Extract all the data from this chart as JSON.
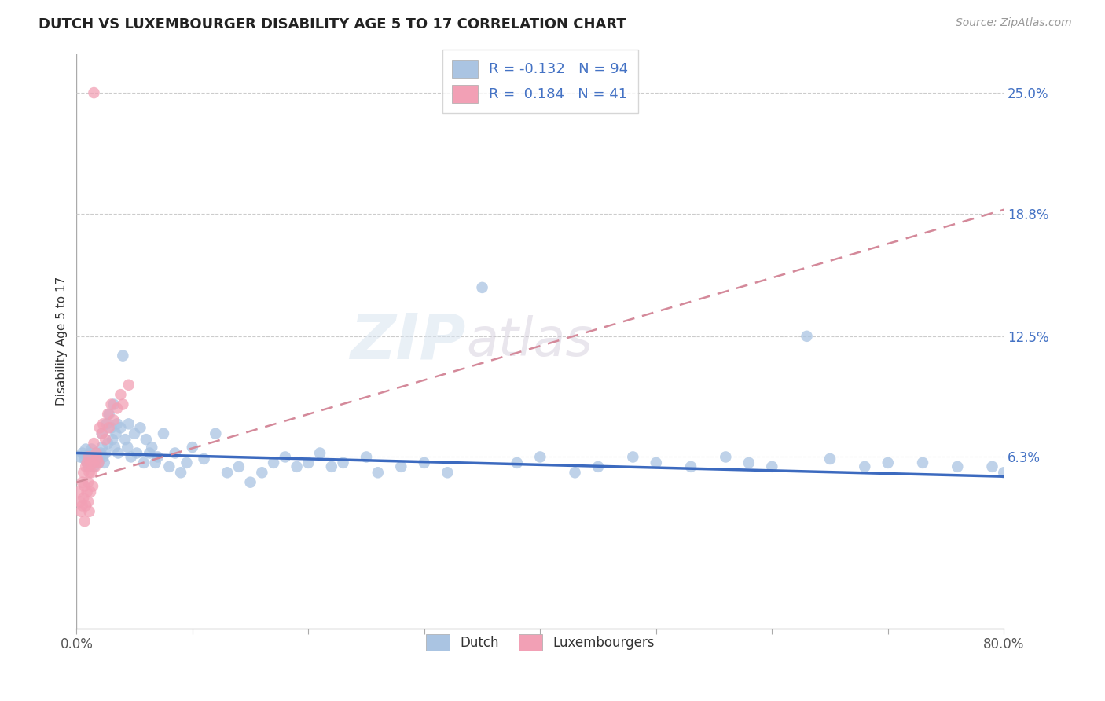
{
  "title": "DUTCH VS LUXEMBOURGER DISABILITY AGE 5 TO 17 CORRELATION CHART",
  "source": "Source: ZipAtlas.com",
  "ylabel": "Disability Age 5 to 17",
  "x_min": 0.0,
  "x_max": 0.8,
  "y_min": -0.025,
  "y_max": 0.27,
  "y_tick_labels_right": [
    "6.3%",
    "12.5%",
    "18.8%",
    "25.0%"
  ],
  "y_tick_positions_right": [
    0.063,
    0.125,
    0.188,
    0.25
  ],
  "dutch_R": -0.132,
  "dutch_N": 94,
  "lux_R": 0.184,
  "lux_N": 41,
  "dutch_color": "#aac4e2",
  "lux_color": "#f2a0b5",
  "trend_dutch_color": "#3c6abf",
  "trend_lux_color": "#e8607a",
  "watermark": "ZIPatlas",
  "dutch_scatter_x": [
    0.003,
    0.005,
    0.007,
    0.008,
    0.009,
    0.01,
    0.01,
    0.011,
    0.012,
    0.013,
    0.013,
    0.014,
    0.015,
    0.015,
    0.016,
    0.017,
    0.018,
    0.019,
    0.02,
    0.02,
    0.021,
    0.022,
    0.022,
    0.023,
    0.024,
    0.025,
    0.026,
    0.027,
    0.028,
    0.03,
    0.031,
    0.032,
    0.033,
    0.034,
    0.035,
    0.036,
    0.038,
    0.04,
    0.042,
    0.044,
    0.045,
    0.047,
    0.05,
    0.052,
    0.055,
    0.058,
    0.06,
    0.063,
    0.065,
    0.068,
    0.07,
    0.075,
    0.08,
    0.085,
    0.09,
    0.095,
    0.1,
    0.11,
    0.12,
    0.13,
    0.14,
    0.15,
    0.16,
    0.17,
    0.18,
    0.19,
    0.2,
    0.21,
    0.22,
    0.23,
    0.25,
    0.26,
    0.28,
    0.3,
    0.32,
    0.35,
    0.38,
    0.4,
    0.43,
    0.45,
    0.48,
    0.5,
    0.53,
    0.56,
    0.58,
    0.6,
    0.63,
    0.65,
    0.68,
    0.7,
    0.73,
    0.76,
    0.79,
    0.8
  ],
  "dutch_scatter_y": [
    0.063,
    0.065,
    0.062,
    0.067,
    0.06,
    0.064,
    0.058,
    0.063,
    0.065,
    0.062,
    0.067,
    0.063,
    0.06,
    0.058,
    0.063,
    0.065,
    0.063,
    0.06,
    0.064,
    0.062,
    0.065,
    0.068,
    0.075,
    0.063,
    0.06,
    0.065,
    0.08,
    0.07,
    0.085,
    0.078,
    0.072,
    0.09,
    0.068,
    0.075,
    0.08,
    0.065,
    0.078,
    0.115,
    0.072,
    0.068,
    0.08,
    0.063,
    0.075,
    0.065,
    0.078,
    0.06,
    0.072,
    0.065,
    0.068,
    0.06,
    0.063,
    0.075,
    0.058,
    0.065,
    0.055,
    0.06,
    0.068,
    0.062,
    0.075,
    0.055,
    0.058,
    0.05,
    0.055,
    0.06,
    0.063,
    0.058,
    0.06,
    0.065,
    0.058,
    0.06,
    0.063,
    0.055,
    0.058,
    0.06,
    0.055,
    0.15,
    0.06,
    0.063,
    0.055,
    0.058,
    0.063,
    0.06,
    0.058,
    0.063,
    0.06,
    0.058,
    0.125,
    0.062,
    0.058,
    0.06,
    0.06,
    0.058,
    0.058,
    0.055
  ],
  "lux_scatter_x": [
    0.002,
    0.003,
    0.004,
    0.005,
    0.005,
    0.006,
    0.006,
    0.007,
    0.007,
    0.008,
    0.008,
    0.009,
    0.009,
    0.01,
    0.01,
    0.01,
    0.011,
    0.011,
    0.012,
    0.012,
    0.013,
    0.014,
    0.015,
    0.015,
    0.016,
    0.017,
    0.018,
    0.019,
    0.02,
    0.022,
    0.023,
    0.025,
    0.027,
    0.028,
    0.03,
    0.032,
    0.035,
    0.038,
    0.04,
    0.045,
    0.015
  ],
  "lux_scatter_y": [
    0.045,
    0.04,
    0.035,
    0.05,
    0.038,
    0.055,
    0.042,
    0.048,
    0.03,
    0.058,
    0.038,
    0.06,
    0.045,
    0.063,
    0.05,
    0.04,
    0.055,
    0.035,
    0.06,
    0.045,
    0.055,
    0.048,
    0.07,
    0.06,
    0.058,
    0.065,
    0.062,
    0.06,
    0.078,
    0.075,
    0.08,
    0.072,
    0.085,
    0.078,
    0.09,
    0.082,
    0.088,
    0.095,
    0.09,
    0.1,
    0.25
  ]
}
